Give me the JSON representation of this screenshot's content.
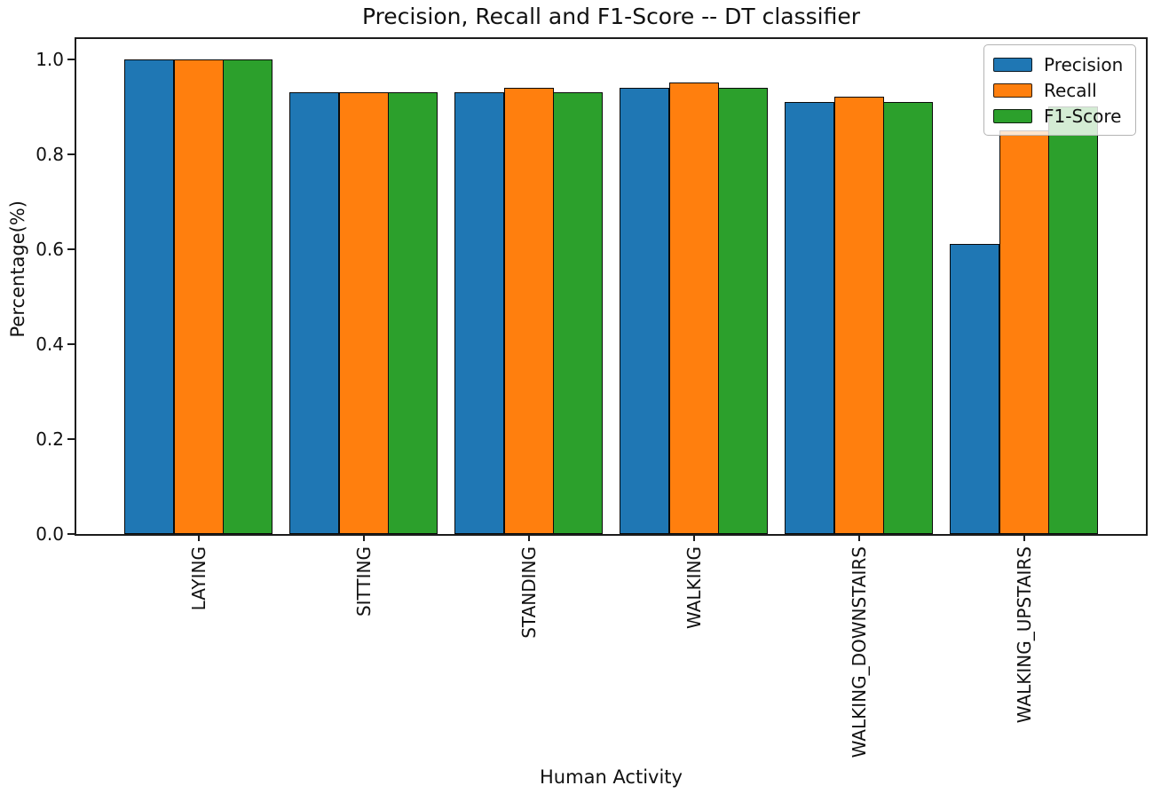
{
  "chart_data": {
    "type": "bar",
    "title": "Precision, Recall and F1-Score -- DT classifier",
    "xlabel": "Human Activity",
    "ylabel": "Percentage(%)",
    "categories": [
      "LAYING",
      "SITTING",
      "STANDING",
      "WALKING",
      "WALKING_DOWNSTAIRS",
      "WALKING_UPSTAIRS"
    ],
    "series": [
      {
        "name": "Precision",
        "color": "#1f77b4",
        "values": [
          1.0,
          0.93,
          0.93,
          0.94,
          0.91,
          0.61
        ]
      },
      {
        "name": "Recall",
        "color": "#ff7f0e",
        "values": [
          1.0,
          0.93,
          0.94,
          0.95,
          0.92,
          0.85
        ]
      },
      {
        "name": "F1-Score",
        "color": "#2ca02c",
        "values": [
          1.0,
          0.93,
          0.93,
          0.94,
          0.91,
          0.9
        ]
      }
    ],
    "ytick_labels": [
      "0.0",
      "0.2",
      "0.4",
      "0.6",
      "0.8",
      "1.0"
    ],
    "ylim": [
      0.0,
      1.046
    ],
    "grid": false,
    "legend_position": "upper right",
    "bar_edge_color": "#0a0a0a",
    "axis_color": "#1c1c1c"
  }
}
